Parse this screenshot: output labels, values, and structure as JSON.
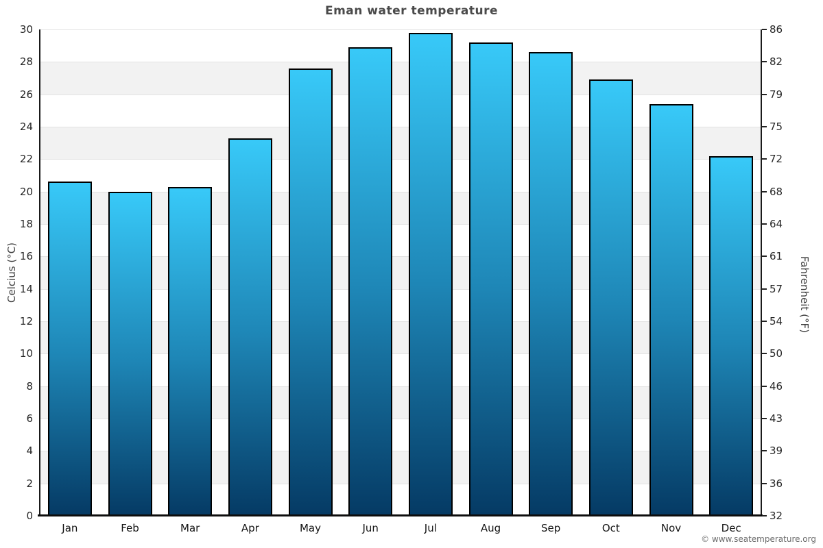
{
  "title": "Eman water temperature",
  "copyright": "© www.seatemperature.org",
  "colors": {
    "title_text": "#4a4a4a",
    "band_gray": "#f2f2f2",
    "gridline": "#e2e2e2",
    "bar_gradient_top": "#38c9f8",
    "bar_gradient_mid": "#1e86b6",
    "bar_gradient_bottom": "#053a64",
    "bar_border": "#000000",
    "axis_spine": "#1a1a1a"
  },
  "chart_data": {
    "type": "bar",
    "title": "Eman water temperature",
    "categories": [
      "Jan",
      "Feb",
      "Mar",
      "Apr",
      "May",
      "Jun",
      "Jul",
      "Aug",
      "Sep",
      "Oct",
      "Nov",
      "Dec"
    ],
    "values": [
      20.6,
      20.0,
      20.3,
      23.3,
      27.6,
      28.9,
      29.8,
      29.2,
      28.6,
      26.9,
      25.4,
      22.2
    ],
    "unit": "°C",
    "xlabel": "",
    "ylabel_left": "Celcius (°C)",
    "ylabel_right": "Fahrenheit (°F)",
    "ylim": [
      0,
      30
    ],
    "yticks_celsius": [
      0,
      2,
      4,
      6,
      8,
      10,
      12,
      14,
      16,
      18,
      20,
      22,
      24,
      26,
      28,
      30
    ],
    "yticks_fahrenheit": [
      32,
      36,
      39,
      43,
      46,
      50,
      54,
      57,
      61,
      64,
      68,
      72,
      75,
      79,
      82,
      86
    ],
    "grid": "horizontal gridlines at each celsius tick with alternating white/light-gray bands",
    "legend": "none"
  }
}
